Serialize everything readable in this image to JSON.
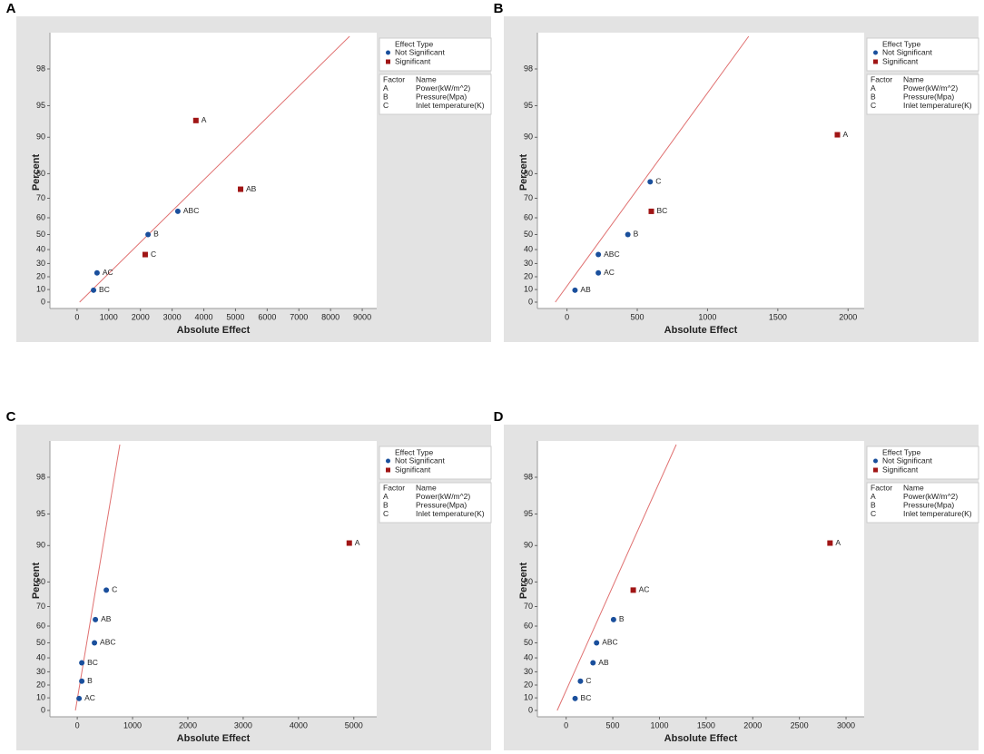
{
  "chart_data": [
    {
      "type": "scatter",
      "panel": "A",
      "xlabel": "Absolute Effect",
      "ylabel": "Percent",
      "yscale": "half-normal",
      "xlim": [
        -570,
        9170
      ],
      "xticks": [
        0,
        1000,
        2000,
        3000,
        4000,
        5000,
        6000,
        7000,
        8000,
        9000
      ],
      "ylim": [
        0,
        99.2
      ],
      "yticks": [
        0,
        10,
        20,
        30,
        40,
        50,
        60,
        70,
        80,
        90,
        95,
        98
      ],
      "fit_line": {
        "x": [
          80,
          8600
        ],
        "y": [
          0,
          99.2
        ],
        "color": "#e07070"
      },
      "legend_title": "Effect Type",
      "series": [
        {
          "name": "Not Significant",
          "color": "#1a4f9c",
          "marker": "circle",
          "labels": [
            "BC",
            "AC",
            "B",
            "ABC"
          ],
          "x": [
            520,
            630,
            2240,
            3180
          ],
          "y": [
            9.5,
            23,
            50,
            63.5
          ]
        },
        {
          "name": "Significant",
          "color": "#a01515",
          "marker": "square",
          "labels": [
            "C",
            "AB",
            "A"
          ],
          "x": [
            2150,
            5160,
            3750
          ],
          "y": [
            36.5,
            74,
            93
          ]
        }
      ],
      "factors": {
        "header": [
          "Factor",
          "Name"
        ],
        "rows": [
          [
            "A",
            "Power(kW/m^2)"
          ],
          [
            "B",
            "Pressure(Mpa)"
          ],
          [
            "C",
            "Inlet temperature(K)"
          ]
        ]
      }
    },
    {
      "type": "scatter",
      "panel": "B",
      "xlabel": "Absolute Effect",
      "ylabel": "Percent",
      "yscale": "half-normal",
      "xlim": [
        -146,
        2050
      ],
      "xticks": [
        0,
        500,
        1000,
        1500,
        2000
      ],
      "ylim": [
        0,
        99.2
      ],
      "yticks": [
        0,
        10,
        20,
        30,
        40,
        50,
        60,
        70,
        80,
        90,
        95,
        98
      ],
      "fit_line": {
        "x": [
          -83,
          1293
        ],
        "y": [
          0,
          99.2
        ],
        "color": "#e07070"
      },
      "legend_title": "Effect Type",
      "series": [
        {
          "name": "Not Significant",
          "color": "#1a4f9c",
          "marker": "circle",
          "labels": [
            "AB",
            "AC",
            "ABC",
            "B",
            "C"
          ],
          "x": [
            57,
            223,
            223,
            433,
            592
          ],
          "y": [
            9.5,
            23,
            36.5,
            50,
            77
          ]
        },
        {
          "name": "Significant",
          "color": "#a01515",
          "marker": "square",
          "labels": [
            "BC",
            "A"
          ],
          "x": [
            600,
            1924
          ],
          "y": [
            63.5,
            90.5
          ]
        }
      ],
      "factors": {
        "header": [
          "Factor",
          "Name"
        ],
        "rows": [
          [
            "A",
            "Power(kW/m^2)"
          ],
          [
            "B",
            "Pressure(Mpa)"
          ],
          [
            "C",
            "Inlet temperature(K)"
          ]
        ]
      }
    },
    {
      "type": "scatter",
      "panel": "C",
      "xlabel": "Absolute Effect",
      "ylabel": "Percent",
      "yscale": "half-normal",
      "xlim": [
        -330,
        5250
      ],
      "xticks": [
        0,
        1000,
        2000,
        3000,
        4000,
        5000
      ],
      "ylim": [
        0,
        99.2
      ],
      "yticks": [
        0,
        10,
        20,
        30,
        40,
        50,
        60,
        70,
        80,
        90,
        95,
        98
      ],
      "fit_line": {
        "x": [
          -33,
          770
        ],
        "y": [
          0,
          99.2
        ],
        "color": "#e07070"
      },
      "legend_title": "Effect Type",
      "series": [
        {
          "name": "Not Significant",
          "color": "#1a4f9c",
          "marker": "circle",
          "labels": [
            "AC",
            "B",
            "BC",
            "ABC",
            "AB",
            "C"
          ],
          "x": [
            33,
            82,
            82,
            311,
            328,
            525
          ],
          "y": [
            9.5,
            23,
            36.5,
            50,
            63.5,
            77
          ]
        },
        {
          "name": "Significant",
          "color": "#a01515",
          "marker": "square",
          "labels": [
            "A"
          ],
          "x": [
            4918
          ],
          "y": [
            90.5
          ]
        }
      ],
      "factors": {
        "header": [
          "Factor",
          "Name"
        ],
        "rows": [
          [
            "A",
            "Power(kW/m^2)"
          ],
          [
            "B",
            "Pressure(Mpa)"
          ],
          [
            "C",
            "Inlet temperature(K)"
          ]
        ]
      }
    },
    {
      "type": "scatter",
      "panel": "D",
      "xlabel": "Absolute Effect",
      "ylabel": "Percent",
      "yscale": "half-normal",
      "xlim": [
        -211,
        3097
      ],
      "xticks": [
        0,
        500,
        1000,
        1500,
        2000,
        2500,
        3000
      ],
      "ylim": [
        0,
        99.2
      ],
      "yticks": [
        0,
        10,
        20,
        30,
        40,
        50,
        60,
        70,
        80,
        90,
        95,
        98
      ],
      "fit_line": {
        "x": [
          -96,
          1180
        ],
        "y": [
          0,
          99.2
        ],
        "color": "#e07070"
      },
      "legend_title": "Effect Type",
      "series": [
        {
          "name": "Not Significant",
          "color": "#1a4f9c",
          "marker": "circle",
          "labels": [
            "BC",
            "C",
            "AB",
            "ABC",
            "B"
          ],
          "x": [
            96,
            153,
            288,
            326,
            508
          ],
          "y": [
            9.5,
            23,
            36.5,
            50,
            63.5
          ]
        },
        {
          "name": "Significant",
          "color": "#a01515",
          "marker": "square",
          "labels": [
            "AC",
            "A"
          ],
          "x": [
            719,
            2828
          ],
          "y": [
            77,
            90.5
          ]
        }
      ],
      "factors": {
        "header": [
          "Factor",
          "Name"
        ],
        "rows": [
          [
            "A",
            "Power(kW/m^2)"
          ],
          [
            "B",
            "Pressure(Mpa)"
          ],
          [
            "C",
            "Inlet temperature(K)"
          ]
        ]
      }
    }
  ]
}
